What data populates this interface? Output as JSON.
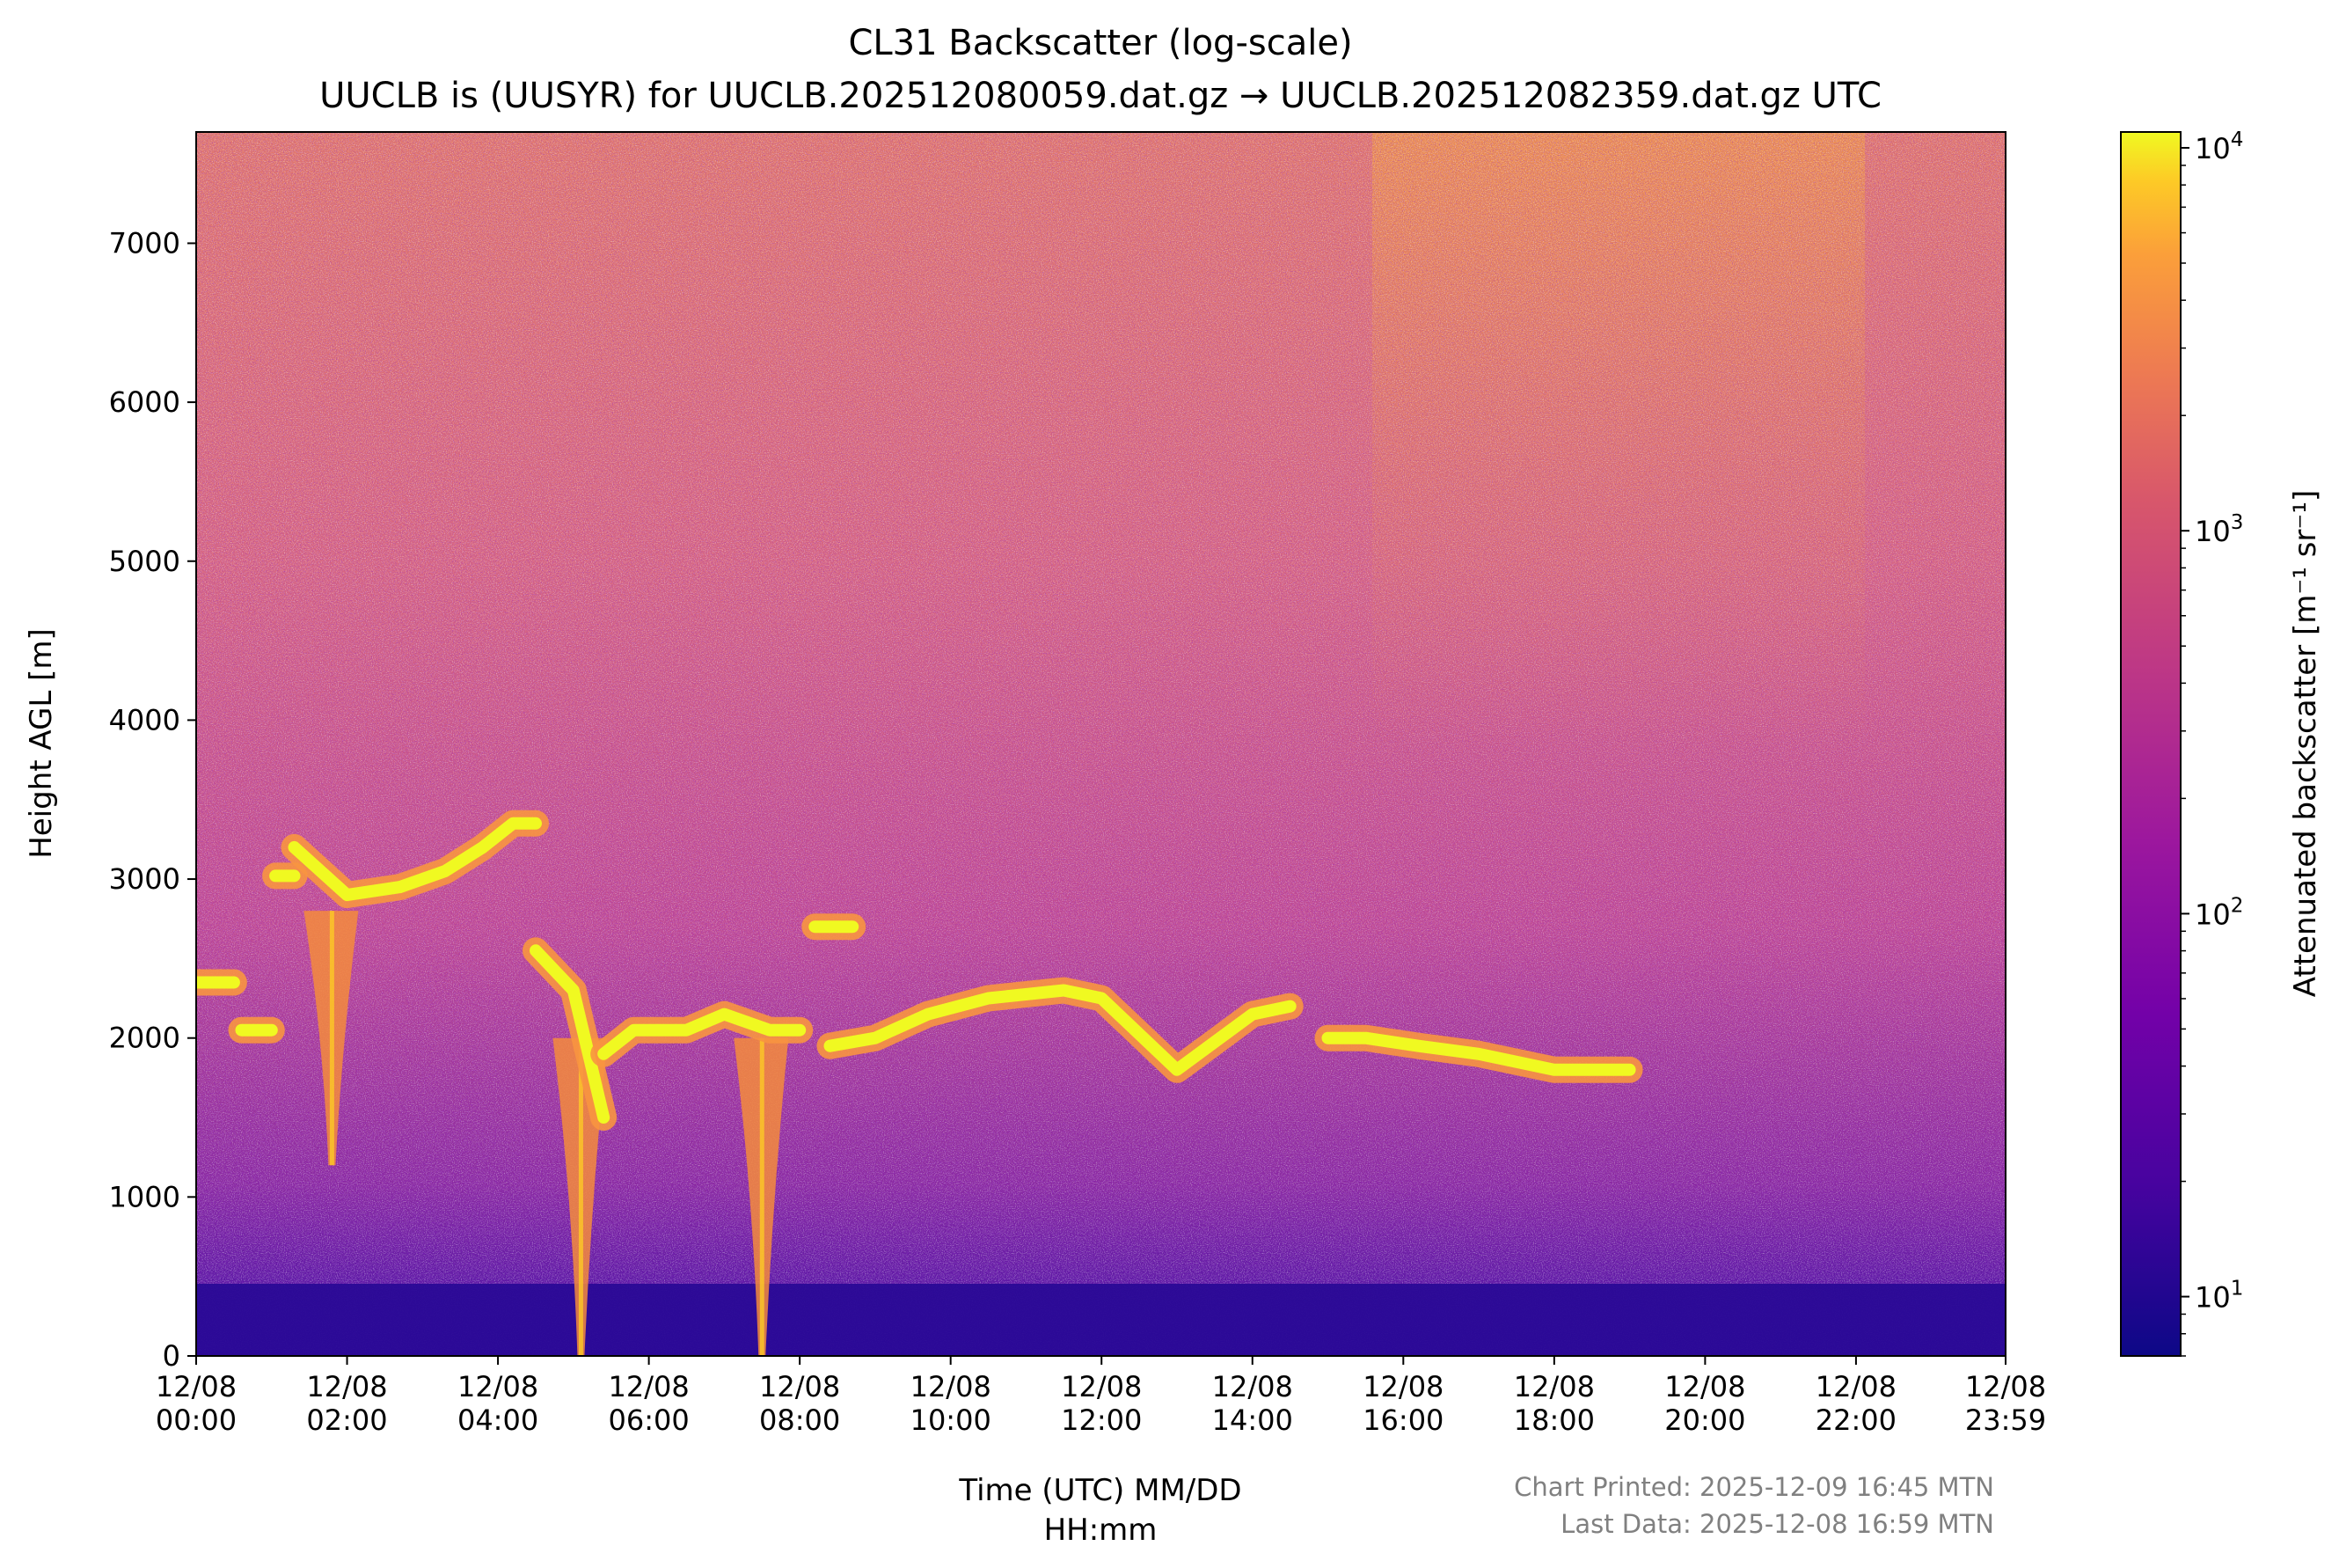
{
  "chart_data": {
    "type": "heatmap",
    "title": "CL31 Backscatter (log-scale)",
    "subtitle": "UUCLB is (UUSYR) for UUCLB.202512080059.dat.gz → UUCLB.202512082359.dat.gz UTC",
    "xlabel_line1": "Time (UTC) MM/DD",
    "xlabel_line2": "HH:mm",
    "ylabel": "Height AGL [m]",
    "colorbar_label": "Attenuated backscatter [m⁻¹ sr⁻¹]",
    "colormap": "plasma",
    "color_scale": "log",
    "color_range": [
      7,
      11000
    ],
    "colorbar_ticks": [
      {
        "value": 10,
        "base": "10",
        "exp": "1"
      },
      {
        "value": 100,
        "base": "10",
        "exp": "2"
      },
      {
        "value": 1000,
        "base": "10",
        "exp": "3"
      },
      {
        "value": 10000,
        "base": "10",
        "exp": "4"
      }
    ],
    "x_range_hours": [
      0,
      23.983
    ],
    "y_range_m": [
      0,
      7700
    ],
    "y_ticks": [
      0,
      1000,
      2000,
      3000,
      4000,
      5000,
      6000,
      7000
    ],
    "y_tick_labels": [
      "0",
      "1000",
      "2000",
      "3000",
      "4000",
      "5000",
      "6000",
      "7000"
    ],
    "x_ticks": [
      {
        "hour": 0,
        "date": "12/08",
        "time": "00:00"
      },
      {
        "hour": 2,
        "date": "12/08",
        "time": "02:00"
      },
      {
        "hour": 4,
        "date": "12/08",
        "time": "04:00"
      },
      {
        "hour": 6,
        "date": "12/08",
        "time": "06:00"
      },
      {
        "hour": 8,
        "date": "12/08",
        "time": "08:00"
      },
      {
        "hour": 10,
        "date": "12/08",
        "time": "10:00"
      },
      {
        "hour": 12,
        "date": "12/08",
        "time": "12:00"
      },
      {
        "hour": 14,
        "date": "12/08",
        "time": "14:00"
      },
      {
        "hour": 16,
        "date": "12/08",
        "time": "16:00"
      },
      {
        "hour": 18,
        "date": "12/08",
        "time": "18:00"
      },
      {
        "hour": 20,
        "date": "12/08",
        "time": "20:00"
      },
      {
        "hour": 22,
        "date": "12/08",
        "time": "22:00"
      },
      {
        "hour": 23.983,
        "date": "12/08",
        "time": "23:59"
      }
    ],
    "cloud_layers": [
      {
        "hours": [
          0.0,
          0.5
        ],
        "heights_m": [
          2350,
          2350
        ]
      },
      {
        "hours": [
          0.6,
          1.0
        ],
        "heights_m": [
          2050,
          2050
        ]
      },
      {
        "hours": [
          1.05,
          1.3
        ],
        "heights_m": [
          3020,
          3020
        ]
      },
      {
        "hours": [
          1.3,
          2.0,
          2.7,
          3.3,
          3.8,
          4.2,
          4.5
        ],
        "heights_m": [
          3200,
          2900,
          2950,
          3050,
          3200,
          3350,
          3350
        ]
      },
      {
        "hours": [
          4.5,
          5.0,
          5.4
        ],
        "heights_m": [
          2550,
          2300,
          1500
        ]
      },
      {
        "hours": [
          5.4,
          5.8,
          6.5,
          7.0,
          7.6,
          8.0
        ],
        "heights_m": [
          1900,
          2050,
          2050,
          2150,
          2050,
          2050
        ]
      },
      {
        "hours": [
          8.2,
          8.7
        ],
        "heights_m": [
          2700,
          2700
        ]
      },
      {
        "hours": [
          8.4,
          9.0,
          9.7,
          10.5,
          11.5,
          12.0,
          13.0,
          14.0,
          14.5
        ],
        "heights_m": [
          1950,
          2000,
          2150,
          2250,
          2300,
          2250,
          1800,
          2150,
          2200
        ]
      },
      {
        "hours": [
          15.0,
          15.5,
          16.2,
          17.0,
          17.5,
          18.0,
          18.5,
          19.0
        ],
        "heights_m": [
          2000,
          2000,
          1950,
          1900,
          1850,
          1800,
          1800,
          1800
        ]
      }
    ],
    "precip_fallstreaks": [
      {
        "hour": 1.8,
        "top_m": 2800,
        "bottom_m": 1200
      },
      {
        "hour": 5.1,
        "top_m": 2000,
        "bottom_m": 0
      },
      {
        "hour": 7.5,
        "top_m": 2000,
        "bottom_m": 0
      }
    ],
    "footer_line1": "Chart Printed: 2025-12-09 16:45 MTN",
    "footer_line2": "Last Data: 2025-12-08 16:59 MTN"
  }
}
